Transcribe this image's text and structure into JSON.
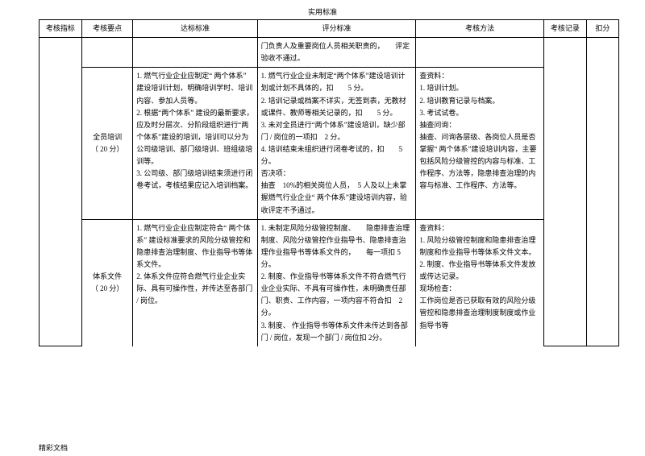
{
  "pageTitle": "实用标准",
  "footer": "精彩文档",
  "headers": [
    "考核指标",
    "考核要点",
    "达标标准",
    "评分标准",
    "考核方法",
    "考核记录",
    "扣分"
  ],
  "rows": [
    {
      "c3": "门负责人及重要岗位人员相关职责的，　　评定验收不通过。"
    },
    {
      "c1a": "全员培训",
      "c1b": "（ 20 分）",
      "c2": "1. 燃气行业企业应制定“ 两个体系” 建设培训计划，明确培训学时、培训内容、参加人员等。\n2. 根据“两个体系” 建设的最新要求，应及时分层次、分阶段组织进行“两个体系”建设的培训，培训可以分为公司级培训、部门级培训、班组级培训等。\n3. 公司级、部门级培训结束须进行闭卷考试，考核结果应记入培训档案。",
      "c3": "1. 燃气行业企业未制定“两个体系”建设培训计划或计划不具体的，扣　　5 分。\n2. 培训记录或档案不详实，无签到表，无教材或课件、教师等相关记录的，扣　　5 分。\n3. 未对全员进行“两个体系”建设培训，缺少部门 / 岗位的一项扣　2 分。\n4. 培训结束未组织进行闭卷考试的，扣　　5分。\n否决项：\n抽查　10%的相关岗位人员，　5 人及以上未掌握燃气行业企业“ 两个体系”建设培训内容，验收评定不予通过。",
      "c4": "查资料：\n1. 培训计划。\n2. 培训教育记录与档案。\n3. 考试试卷。\n抽查问询：\n抽查、问询各层级、各岗位人员是否掌握“ 两个体系”建设培训内容，主要包括风险分级管控的内容与标准、工作程序、方法等，隐患排查治理的内容与标准、工作程序、方法等。"
    },
    {
      "c1a": "体系文件",
      "c1b": "（ 20 分）",
      "c2": "1. 燃气行业企业应制定符合“ 两个体系” 建设标准要求的风险分级管控和隐患排查治理制度、作业指导书等体系文件。\n2. 体系文件应符合燃气行业企业实际、具有可操作性，并传达至各部门 / 岗位。",
      "c3": "1. 未制定风险分级管控制度、　　隐患排查治理制度、风险分级管控作业指导书、隐患排查治理作业指导书等体系文件的，　　每一项扣 5 分。\n2. 制度、作业指导书等体系文件不符合燃气行业企业实际、不具有可操作性，未明确责任部门、职责、工作内容，一项内容不符合扣　2 分。\n3. 制度、 作业指导书等体系文件未传达到各部门 / 岗位，发现一个部门 / 岗位扣 2分。",
      "c4": "查资料：\n1. 风险分级管控制度和隐患排查治理制度和作业指导书等体系文件文本。\n2. 制度、作业指导书等体系文件发放或传达记录。\n现场检查：\n工作岗位是否已获取有效的风险分级管控和隐患排查治理制度制度或作业指导书等"
    }
  ]
}
